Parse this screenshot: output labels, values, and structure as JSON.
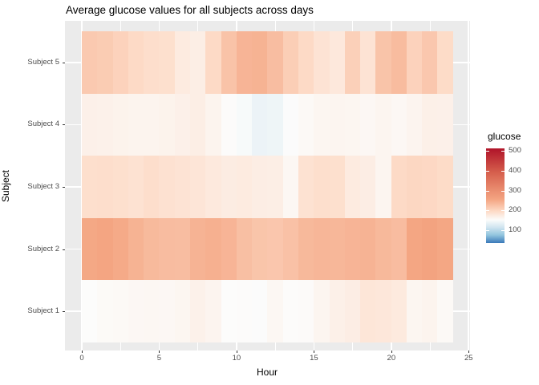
{
  "title": "Average glucose values for all subjects across days",
  "colors": {
    "panel_background": "#EBEBEB",
    "gridline": "#FFFFFF",
    "axis_text": "#4D4D4D",
    "tick_mark": "#333333",
    "title_text": "#000000",
    "ramp": [
      [
        35,
        "#3A79B8"
      ],
      [
        75,
        "#92C5DE"
      ],
      [
        115,
        "#D1E5F0"
      ],
      [
        152,
        "#FCFCFB"
      ],
      [
        195,
        "#FDDBC7"
      ],
      [
        255,
        "#F4A582"
      ],
      [
        390,
        "#D6604D"
      ],
      [
        505,
        "#B2182B"
      ]
    ]
  },
  "chart_data": {
    "type": "heatmap",
    "title": "Average glucose values for all subjects across days",
    "xlabel": "Hour",
    "ylabel": "Subject",
    "x_hours": [
      0,
      1,
      2,
      3,
      4,
      5,
      6,
      7,
      8,
      9,
      10,
      11,
      12,
      13,
      14,
      15,
      16,
      17,
      18,
      19,
      20,
      21,
      22,
      23
    ],
    "x_ticks": [
      0,
      5,
      10,
      15,
      20,
      25
    ],
    "x_tile_range": [
      0,
      24
    ],
    "rows_top_to_bottom": [
      "Subject 5",
      "Subject 4",
      "Subject 3",
      "Subject 2",
      "Subject 1"
    ],
    "series": [
      {
        "name": "Subject 1",
        "values": [
          152,
          155,
          156,
          158,
          159,
          158,
          160,
          166,
          162,
          152,
          153,
          151,
          159,
          153,
          154,
          161,
          168,
          171,
          181,
          179,
          176,
          160,
          163,
          156
        ]
      },
      {
        "name": "Subject 2",
        "values": [
          252,
          255,
          250,
          240,
          232,
          229,
          228,
          239,
          243,
          238,
          226,
          220,
          218,
          224,
          233,
          236,
          235,
          238,
          239,
          233,
          229,
          254,
          259,
          253
        ]
      },
      {
        "name": "Subject 3",
        "values": [
          190,
          191,
          189,
          186,
          191,
          187,
          184,
          182,
          177,
          173,
          174,
          171,
          170,
          159,
          186,
          190,
          189,
          174,
          171,
          161,
          196,
          199,
          198,
          194
        ]
      },
      {
        "name": "Subject 4",
        "values": [
          167,
          166,
          164,
          163,
          163,
          164,
          167,
          170,
          163,
          153,
          148,
          138,
          140,
          151,
          156,
          160,
          161,
          160,
          158,
          161,
          158,
          162,
          168,
          167
        ]
      },
      {
        "name": "Subject 5",
        "values": [
          215,
          212,
          205,
          196,
          191,
          189,
          174,
          170,
          196,
          222,
          238,
          240,
          228,
          210,
          196,
          184,
          178,
          207,
          184,
          221,
          230,
          205,
          217,
          194
        ]
      }
    ],
    "fill": {
      "legend_title": "glucose",
      "legend_ticks": [
        500,
        400,
        300,
        200,
        100
      ],
      "scale": "blue-white-red",
      "domain": [
        35,
        513
      ],
      "white_at": 152
    },
    "grid": "on",
    "legend_position": "right"
  },
  "legend": {
    "title": "glucose",
    "tick_labels": [
      "500",
      "400",
      "300",
      "200",
      "100"
    ]
  }
}
